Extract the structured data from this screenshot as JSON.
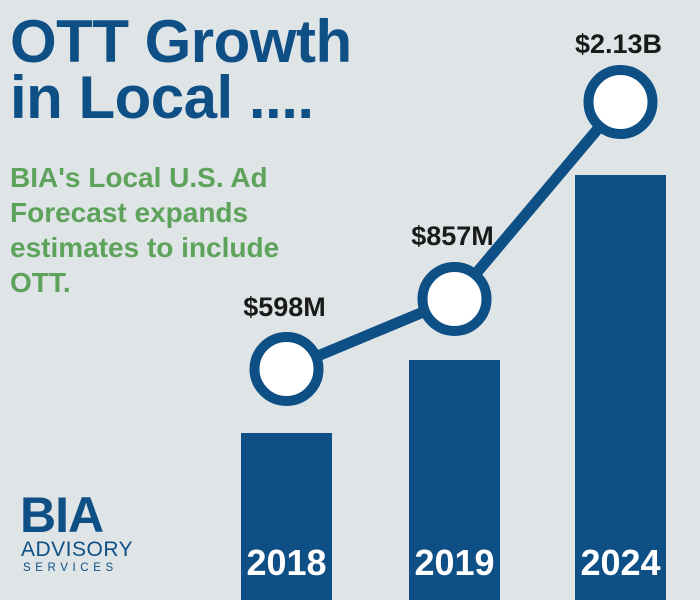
{
  "title": {
    "line1": "OTT Growth",
    "line2": "in Local ...."
  },
  "subtitle": {
    "line1": "BIA's Local U.S. Ad",
    "line2": "Forecast expands",
    "line3": "estimates to include",
    "line4": "OTT."
  },
  "logo": {
    "name": "BIA",
    "line2": "ADVISORY",
    "line3": "SERVICES"
  },
  "colors": {
    "bar": "#0e4f86",
    "line": "#0e4f86",
    "label": "#1a1a1a",
    "title": "#0e4f86",
    "subtitle": "#5ea35b",
    "background": "#dfe4e6"
  },
  "chart_data": {
    "type": "bar",
    "categories": [
      "2018",
      "2019",
      "2024"
    ],
    "values": [
      598,
      857,
      2130
    ],
    "data_labels": [
      "$598M",
      "$857M",
      "$2.13B"
    ],
    "overlay_line": true,
    "title": "",
    "xlabel": "",
    "ylabel": "",
    "grid": false,
    "legend": "none"
  }
}
